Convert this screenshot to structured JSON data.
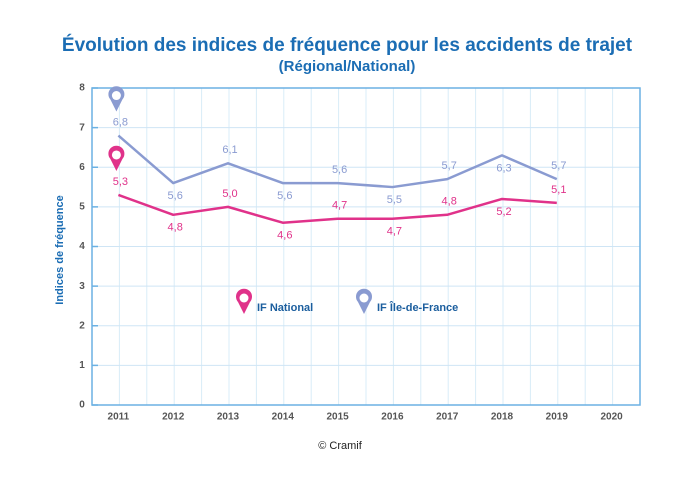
{
  "chart_data": {
    "type": "line",
    "title": "Évolution des indices de fréquence pour les accidents de trajet",
    "subtitle": "(Régional/National)",
    "y_label": "Indices de fréquence",
    "source": "© Cramif",
    "categories": [
      "2011",
      "2012",
      "2013",
      "2014",
      "2015",
      "2016",
      "2017",
      "2018",
      "2019",
      "2020"
    ],
    "series": [
      {
        "name": "IF National",
        "color": "#e0328a",
        "values": [
          5.3,
          4.8,
          5.0,
          4.6,
          4.7,
          4.7,
          4.8,
          5.2,
          5.1,
          null
        ],
        "value_labels": [
          "5,3",
          "4,8",
          "5,0",
          "4,6",
          "4,7",
          "4,7",
          "4,8",
          "5,2",
          "5,1",
          null
        ]
      },
      {
        "name": "IF Île-de-France",
        "color": "#8a9bd1",
        "values": [
          6.8,
          5.6,
          6.1,
          5.6,
          5.6,
          5.5,
          5.7,
          6.3,
          5.7,
          null
        ],
        "value_labels": [
          "6,8",
          "5,6",
          "6,1",
          "5,6",
          "5,6",
          "5,5",
          "5,7",
          "6,3",
          "5,7",
          null
        ]
      }
    ],
    "ylim": [
      0,
      8
    ],
    "yticks": [
      0,
      1,
      2,
      3,
      4,
      5,
      6,
      7,
      8
    ],
    "grid": true
  }
}
